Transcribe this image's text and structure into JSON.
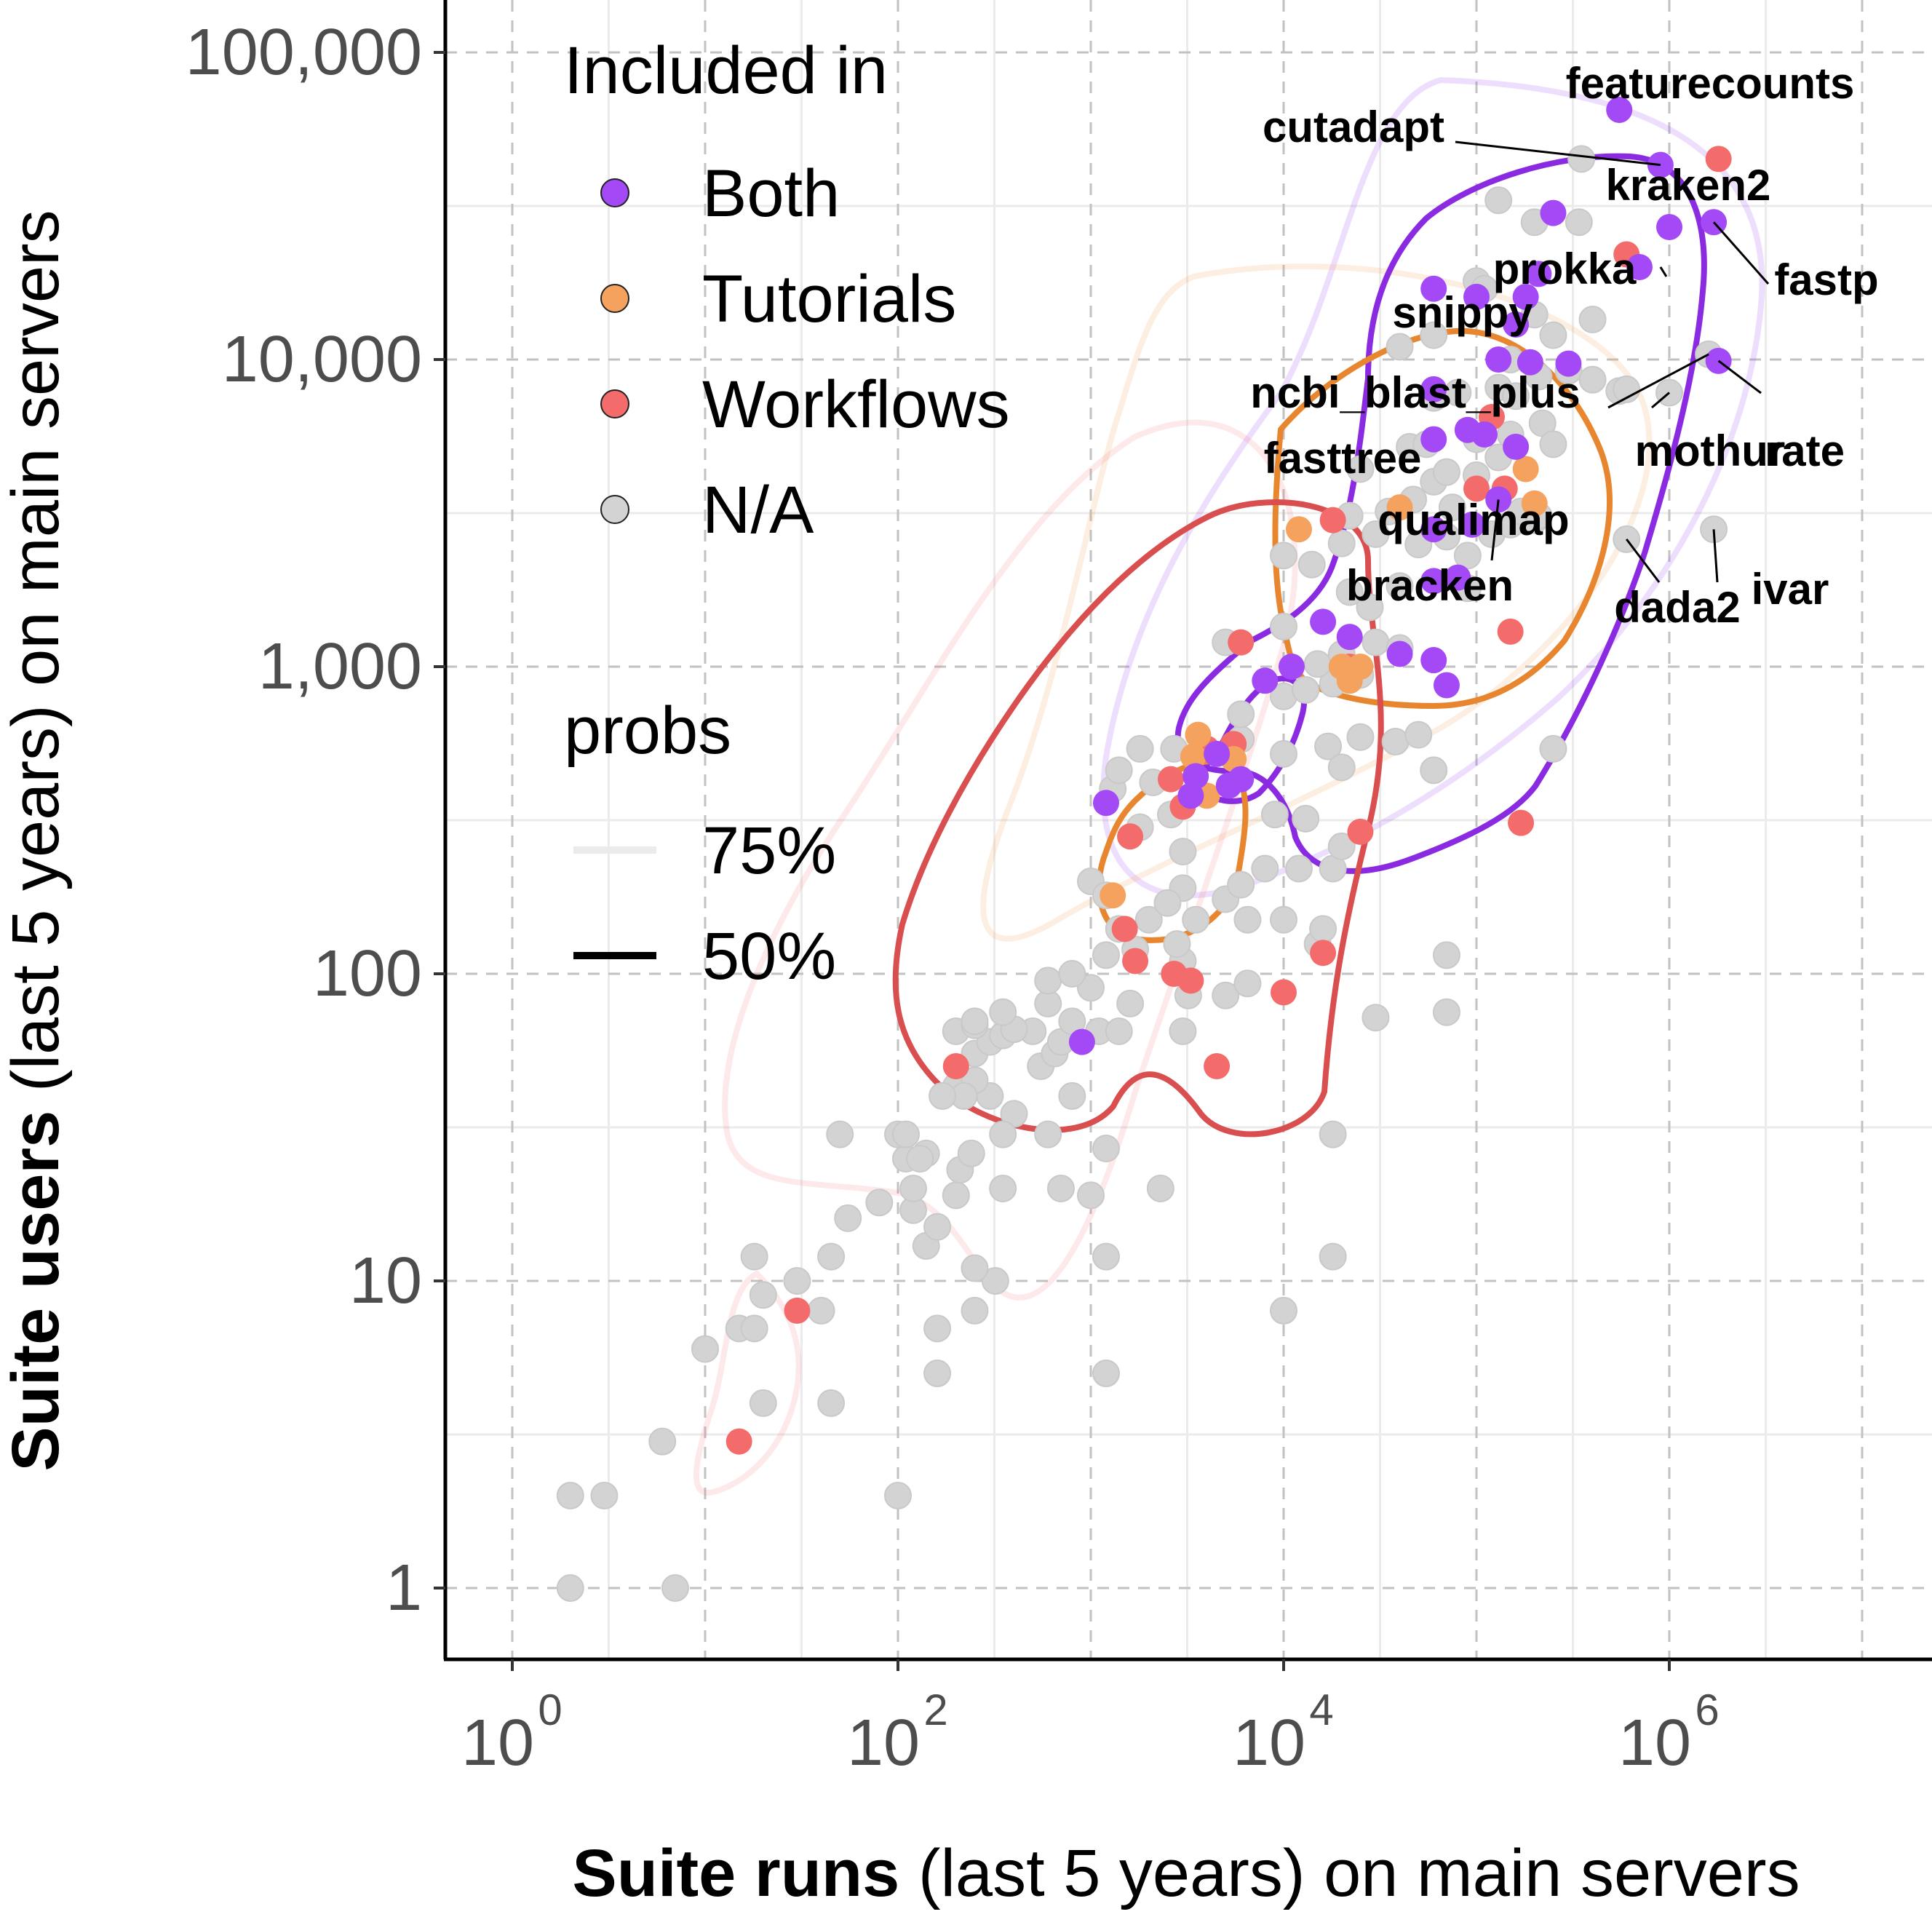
{
  "chart_data": {
    "type": "scatter",
    "x_scale": "log10",
    "y_scale": "log10",
    "xlabel_bold": "Suite runs",
    "xlabel_rest": " (last 5 years) on main servers",
    "ylabel_bold": "Suite users",
    "ylabel_rest": " (last 5 years) on main servers",
    "xlim": [
      0.5,
      20000000
    ],
    "ylim": [
      0.5,
      120000
    ],
    "x_ticks": [
      {
        "value": 1,
        "base": "10",
        "exp": "0"
      },
      {
        "value": 100,
        "base": "10",
        "exp": "2"
      },
      {
        "value": 10000,
        "base": "10",
        "exp": "4"
      },
      {
        "value": 1000000,
        "base": "10",
        "exp": "6"
      }
    ],
    "y_ticks": [
      {
        "value": 1,
        "label": "1"
      },
      {
        "value": 10,
        "label": "10"
      },
      {
        "value": 100,
        "label": "100"
      },
      {
        "value": 1000,
        "label": "1,000"
      },
      {
        "value": 10000,
        "label": "10,000"
      },
      {
        "value": 100000,
        "label": "100,000"
      }
    ],
    "grid": true,
    "legend": {
      "placement": "top-left",
      "color_title": "Included in",
      "color_entries": [
        {
          "key": "Both",
          "label": "Both",
          "color": "#a349f5"
        },
        {
          "key": "Tutorials",
          "label": "Tutorials",
          "color": "#f6a25f"
        },
        {
          "key": "Workflows",
          "label": "Workflows",
          "color": "#f46b6b"
        },
        {
          "key": "NA",
          "label": "N/A",
          "color": "#d3d3d3"
        }
      ],
      "probs_title": "probs",
      "probs_entries": [
        {
          "label": "75%",
          "style": "faint"
        },
        {
          "label": "50%",
          "style": "solid"
        }
      ]
    },
    "series": [
      {
        "key": "NA",
        "points": [
          [
            2,
            1
          ],
          [
            7,
            1
          ],
          [
            2,
            2
          ],
          [
            3,
            2
          ],
          [
            100,
            2
          ],
          [
            6,
            3
          ],
          [
            20,
            4
          ],
          [
            45,
            4
          ],
          [
            1200,
            5
          ],
          [
            160,
            5
          ],
          [
            10,
            6
          ],
          [
            15,
            7
          ],
          [
            18,
            7
          ],
          [
            160,
            7
          ],
          [
            40,
            8
          ],
          [
            250,
            8
          ],
          [
            10000,
            8
          ],
          [
            20,
            9
          ],
          [
            30,
            10
          ],
          [
            320,
            10
          ],
          [
            18,
            12
          ],
          [
            45,
            12
          ],
          [
            250,
            11
          ],
          [
            1200,
            12
          ],
          [
            18000,
            12
          ],
          [
            140,
            13
          ],
          [
            160,
            15
          ],
          [
            120,
            17
          ],
          [
            55,
            16
          ],
          [
            2300,
            20
          ],
          [
            200,
            19
          ],
          [
            700,
            20
          ],
          [
            1000,
            19
          ],
          [
            80,
            18
          ],
          [
            120,
            20
          ],
          [
            350,
            20
          ],
          [
            110,
            25
          ],
          [
            210,
            23
          ],
          [
            140,
            26
          ],
          [
            240,
            26
          ],
          [
            1200,
            27
          ],
          [
            100,
            30
          ],
          [
            110,
            30
          ],
          [
            130,
            25
          ],
          [
            50,
            30
          ],
          [
            600,
            30
          ],
          [
            18000,
            30
          ],
          [
            300,
            40
          ],
          [
            200,
            43
          ],
          [
            250,
            45
          ],
          [
            220,
            40
          ],
          [
            170,
            40
          ],
          [
            400,
            35
          ],
          [
            350,
            30
          ],
          [
            800,
            40
          ],
          [
            550,
            50
          ],
          [
            650,
            55
          ],
          [
            250,
            55
          ],
          [
            300,
            60
          ],
          [
            350,
            63
          ],
          [
            500,
            65
          ],
          [
            400,
            66
          ],
          [
            700,
            60
          ],
          [
            800,
            70
          ],
          [
            200,
            65
          ],
          [
            250,
            68
          ],
          [
            1100,
            65
          ],
          [
            1400,
            65
          ],
          [
            3000,
            65
          ],
          [
            30000,
            72
          ],
          [
            70000,
            75
          ],
          [
            250,
            70
          ],
          [
            350,
            75
          ],
          [
            600,
            80
          ],
          [
            1000,
            90
          ],
          [
            1600,
            80
          ],
          [
            3200,
            85
          ],
          [
            5000,
            85
          ],
          [
            6500,
            93
          ],
          [
            600,
            95
          ],
          [
            800,
            100
          ],
          [
            3000,
            110
          ],
          [
            1200,
            115
          ],
          [
            1700,
            120
          ],
          [
            2800,
            125
          ],
          [
            1400,
            140
          ],
          [
            2000,
            150
          ],
          [
            3500,
            150
          ],
          [
            6500,
            150
          ],
          [
            10000,
            150
          ],
          [
            15000,
            125
          ],
          [
            16000,
            140
          ],
          [
            70000,
            115
          ],
          [
            1000,
            200
          ],
          [
            1200,
            180
          ],
          [
            3000,
            190
          ],
          [
            2500,
            170
          ],
          [
            5000,
            175
          ],
          [
            6000,
            195
          ],
          [
            8000,
            220
          ],
          [
            12000,
            220
          ],
          [
            18000,
            220
          ],
          [
            3000,
            250
          ],
          [
            20000,
            260
          ],
          [
            9000,
            330
          ],
          [
            13000,
            320
          ],
          [
            1800,
            300
          ],
          [
            2600,
            330
          ],
          [
            1300,
            400
          ],
          [
            1400,
            460
          ],
          [
            1800,
            540
          ],
          [
            2700,
            540
          ],
          [
            2100,
            420
          ],
          [
            6000,
            580
          ],
          [
            10000,
            520
          ],
          [
            17000,
            550
          ],
          [
            20000,
            470
          ],
          [
            25000,
            590
          ],
          [
            38000,
            570
          ],
          [
            50000,
            600
          ],
          [
            250000,
            540
          ],
          [
            60000,
            460
          ],
          [
            6000,
            700
          ],
          [
            10000,
            800
          ],
          [
            13000,
            840
          ],
          [
            18000,
            880
          ],
          [
            25000,
            940
          ],
          [
            15000,
            1020
          ],
          [
            20000,
            1100
          ],
          [
            30000,
            1200
          ],
          [
            40000,
            1150
          ],
          [
            5000,
            1200
          ],
          [
            10000,
            1350
          ],
          [
            28000,
            1560
          ],
          [
            22000,
            1750
          ],
          [
            40000,
            1830
          ],
          [
            90000,
            1800
          ],
          [
            14000,
            2150
          ],
          [
            10000,
            2300
          ],
          [
            20000,
            2520
          ],
          [
            30000,
            2700
          ],
          [
            50000,
            2500
          ],
          [
            70000,
            2650
          ],
          [
            90000,
            2300
          ],
          [
            120000,
            2700
          ],
          [
            150000,
            2900
          ],
          [
            200000,
            3000
          ],
          [
            22000,
            3100
          ],
          [
            35000,
            3200
          ],
          [
            47000,
            3500
          ],
          [
            60000,
            4000
          ],
          [
            75000,
            3300
          ],
          [
            170000,
            3200
          ],
          [
            210000,
            3100
          ],
          [
            600000,
            2600
          ],
          [
            1700000,
            2800
          ],
          [
            25000,
            4400
          ],
          [
            70000,
            4300
          ],
          [
            100000,
            4200
          ],
          [
            130000,
            4800
          ],
          [
            45000,
            5200
          ],
          [
            55000,
            5300
          ],
          [
            100000,
            5500
          ],
          [
            150000,
            5700
          ],
          [
            220000,
            6200
          ],
          [
            250000,
            5300
          ],
          [
            60000,
            7500
          ],
          [
            80000,
            7800
          ],
          [
            130000,
            8100
          ],
          [
            160000,
            7600
          ],
          [
            210000,
            8800
          ],
          [
            300000,
            9200
          ],
          [
            400000,
            8600
          ],
          [
            550000,
            7900
          ],
          [
            1000000,
            7800
          ],
          [
            1600000,
            10400
          ],
          [
            40000,
            11000
          ],
          [
            60000,
            12000
          ],
          [
            150000,
            10000
          ],
          [
            200000,
            14000
          ],
          [
            250000,
            12000
          ],
          [
            400000,
            13500
          ],
          [
            340000,
            28000
          ],
          [
            200000,
            28000
          ],
          [
            350000,
            45000
          ],
          [
            130000,
            33000
          ],
          [
            100000,
            18000
          ],
          [
            110000,
            17000
          ],
          [
            600000,
            8000
          ]
        ]
      },
      {
        "key": "Both",
        "points": [
          [
            900,
            60
          ],
          [
            1200,
            360
          ],
          [
            3500,
            440
          ],
          [
            4500,
            520
          ],
          [
            5200,
            410
          ],
          [
            6000,
            430
          ],
          [
            8000,
            900
          ],
          [
            3300,
            380
          ],
          [
            11000,
            1000
          ],
          [
            16000,
            1400
          ],
          [
            22000,
            1250
          ],
          [
            40000,
            1100
          ],
          [
            60000,
            1050
          ],
          [
            70000,
            870
          ],
          [
            60000,
            1900
          ],
          [
            80000,
            1950
          ],
          [
            60000,
            2800
          ],
          [
            95000,
            2900
          ],
          [
            130000,
            3500
          ],
          [
            60000,
            5500
          ],
          [
            90000,
            5900
          ],
          [
            110000,
            5700
          ],
          [
            160000,
            5200
          ],
          [
            60000,
            8000
          ],
          [
            130000,
            10000
          ],
          [
            190000,
            9800
          ],
          [
            300000,
            9700
          ],
          [
            60000,
            17000
          ],
          [
            100000,
            16000
          ],
          [
            160000,
            13000
          ],
          [
            210000,
            19000
          ],
          [
            250000,
            30000
          ],
          [
            700000,
            20000
          ],
          [
            900000,
            43000
          ],
          [
            1700000,
            28000
          ],
          [
            1800000,
            9900
          ],
          [
            550000,
            65000
          ],
          [
            180000,
            16000
          ],
          [
            1000000,
            27000
          ]
        ]
      },
      {
        "key": "Tutorials",
        "points": [
          [
            1300,
            180
          ],
          [
            3400,
            510
          ],
          [
            40000,
            3300
          ],
          [
            180000,
            4400
          ],
          [
            200000,
            3400
          ],
          [
            12000,
            2800
          ],
          [
            20000,
            1000
          ],
          [
            22000,
            900
          ],
          [
            25000,
            1000
          ],
          [
            4000,
            380
          ],
          [
            5500,
            500
          ],
          [
            3600,
            600
          ]
        ]
      },
      {
        "key": "Workflows",
        "points": [
          [
            15,
            3
          ],
          [
            30,
            8
          ],
          [
            200,
            50
          ],
          [
            1500,
            140
          ],
          [
            1700,
            110
          ],
          [
            2700,
            100
          ],
          [
            3300,
            95
          ],
          [
            4500,
            50
          ],
          [
            10000,
            87
          ],
          [
            16000,
            117
          ],
          [
            25000,
            290
          ],
          [
            1600,
            280
          ],
          [
            2600,
            430
          ],
          [
            3000,
            350
          ],
          [
            4000,
            540
          ],
          [
            5500,
            560
          ],
          [
            6000,
            1200
          ],
          [
            22000,
            1000
          ],
          [
            120000,
            6500
          ],
          [
            150000,
            1300
          ],
          [
            100000,
            3800
          ],
          [
            18000,
            3000
          ],
          [
            140000,
            3800
          ],
          [
            600000,
            22000
          ],
          [
            1800000,
            45000
          ],
          [
            170000,
            310
          ]
        ]
      }
    ],
    "annotations": [
      {
        "label": "featurecounts",
        "x": 550000,
        "y": 65000
      },
      {
        "label": "cutadapt",
        "x": 900000,
        "y": 43000
      },
      {
        "label": "kraken2",
        "x": 900000,
        "y": 20000
      },
      {
        "label": "prokka",
        "x": 210000,
        "y": 19000
      },
      {
        "label": "fastp",
        "x": 1700000,
        "y": 28000
      },
      {
        "label": "snippy",
        "x": 200000,
        "y": 14000
      },
      {
        "label": "ncbi_blast_plus",
        "x": 1600000,
        "y": 10400
      },
      {
        "label": "mothur",
        "x": 1000000,
        "y": 7800
      },
      {
        "label": "rate",
        "x": 1800000,
        "y": 9900
      },
      {
        "label": "fasttree",
        "x": 45000,
        "y": 5200
      },
      {
        "label": "qualimap",
        "x": 130000,
        "y": 3500
      },
      {
        "label": "bracken",
        "x": 200000,
        "y": 3000
      },
      {
        "label": "dada2",
        "x": 600000,
        "y": 2600
      },
      {
        "label": "ivar",
        "x": 1700000,
        "y": 2800
      }
    ]
  }
}
